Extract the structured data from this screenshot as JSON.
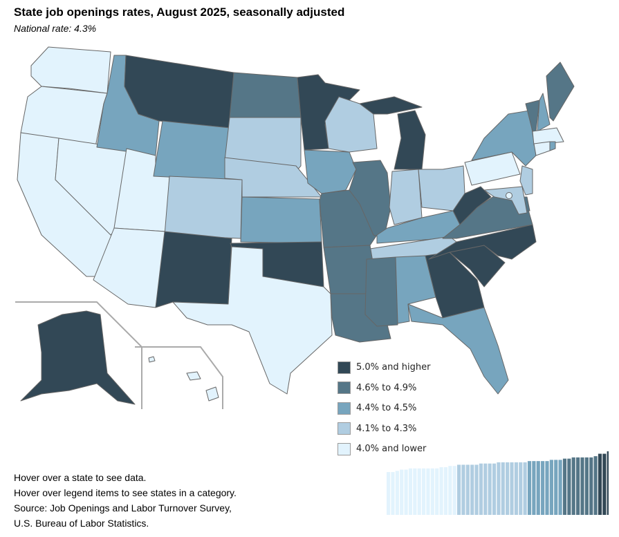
{
  "title": "State job openings rates, August 2025, seasonally adjusted",
  "subtitle": "National rate: 4.3%",
  "legend": [
    {
      "label": "5.0% and higher",
      "color": "#324856"
    },
    {
      "label": "4.6% to 4.9%",
      "color": "#557687"
    },
    {
      "label": "4.4% to 4.5%",
      "color": "#77a5be"
    },
    {
      "label": "4.1% to 4.3%",
      "color": "#b0cde1"
    },
    {
      "label": "4.0% and lower",
      "color": "#e2f3fd"
    }
  ],
  "states": {
    "MT": 0,
    "MN": 0,
    "MI": 0,
    "WV": 0,
    "NM": 0,
    "OK": 0,
    "NC": 0,
    "SC": 0,
    "GA": 0,
    "AK": 0,
    "ND": 1,
    "MO": 1,
    "IL": 1,
    "AR": 1,
    "LA": 1,
    "MS": 1,
    "VA": 1,
    "ME": 1,
    "VT": 1,
    "DE": 1,
    "ID": 2,
    "WY": 2,
    "KS": 2,
    "IA": 2,
    "KY": 2,
    "AL": 2,
    "FL": 2,
    "NY": 2,
    "NH": 2,
    "RI": 2,
    "SD": 3,
    "NE": 3,
    "CO": 3,
    "WI": 3,
    "IN": 3,
    "OH": 3,
    "NJ": 3,
    "MD": 3,
    "TN": 3,
    "WA": 4,
    "OR": 4,
    "CA": 4,
    "NV": 4,
    "UT": 4,
    "AZ": 4,
    "TX": 4,
    "PA": 4,
    "MA": 4,
    "CT": 4,
    "DC": 4,
    "HI": 4
  },
  "distribution_values": [
    3.5,
    3.5,
    3.6,
    3.7,
    3.7,
    3.8,
    3.8,
    3.8,
    3.8,
    3.8,
    3.8,
    3.8,
    3.9,
    3.9,
    4.0,
    4.0,
    4.1,
    4.1,
    4.1,
    4.1,
    4.1,
    4.2,
    4.2,
    4.2,
    4.2,
    4.3,
    4.3,
    4.3,
    4.3,
    4.3,
    4.3,
    4.3,
    4.4,
    4.4,
    4.4,
    4.4,
    4.4,
    4.5,
    4.5,
    4.5,
    4.6,
    4.6,
    4.7,
    4.7,
    4.7,
    4.7,
    4.7,
    4.8,
    5.0,
    5.0,
    5.2
  ],
  "notes": [
    "Hover over a state to see data.",
    "Hover over legend items to see states in a category.",
    "Source: Job Openings and Labor Turnover Survey,",
    "U.S. Bureau of Labor Statistics."
  ]
}
